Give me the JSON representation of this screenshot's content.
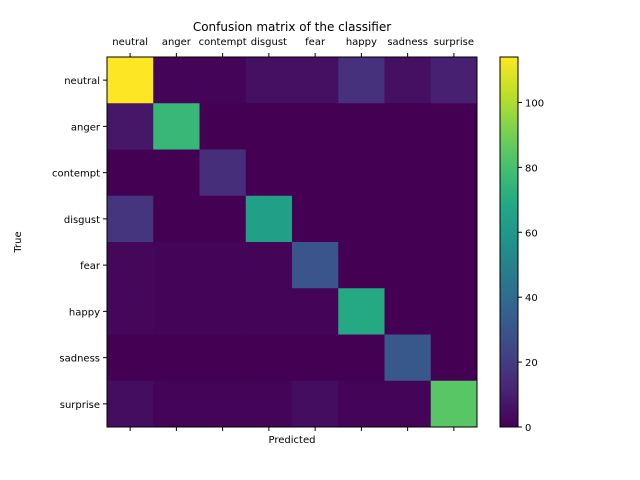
{
  "chart_data": {
    "type": "heatmap",
    "title": "Confusion matrix of the classifier",
    "xlabel": "Predicted",
    "ylabel": "True",
    "x_categories": [
      "neutral",
      "anger",
      "contempt",
      "disgust",
      "fear",
      "happy",
      "sadness",
      "surprise"
    ],
    "y_categories": [
      "neutral",
      "anger",
      "contempt",
      "disgust",
      "fear",
      "happy",
      "sadness",
      "surprise"
    ],
    "matrix": [
      [
        114,
        1,
        1,
        5,
        5,
        16,
        5,
        10
      ],
      [
        7,
        76,
        0,
        0,
        0,
        0,
        0,
        0
      ],
      [
        0,
        0,
        15,
        0,
        0,
        0,
        0,
        0
      ],
      [
        17,
        0,
        0,
        64,
        0,
        0,
        0,
        0
      ],
      [
        2,
        1,
        1,
        1,
        30,
        0,
        0,
        0
      ],
      [
        2,
        1,
        1,
        1,
        1,
        69,
        0,
        0
      ],
      [
        0,
        0,
        0,
        0,
        0,
        0,
        31,
        0
      ],
      [
        4,
        1,
        1,
        1,
        4,
        1,
        1,
        84
      ]
    ],
    "colorbar": {
      "min": 0,
      "max": 114,
      "ticks": [
        0,
        20,
        40,
        60,
        80,
        100
      ],
      "colormap": "viridis"
    },
    "x_tick_position": "top",
    "grid": false
  }
}
